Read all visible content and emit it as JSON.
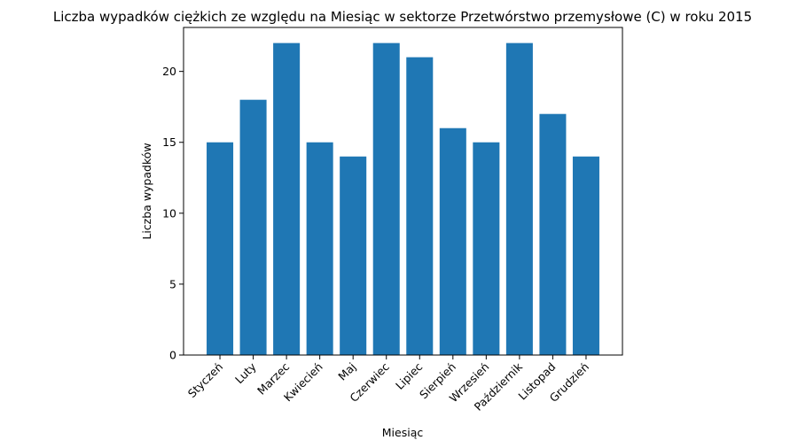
{
  "chart_data": {
    "type": "bar",
    "title": "Liczba wypadków ciężkich ze względu na Miesiąc w sektorze Przetwórstwo przemysłowe (C)   w roku 2015",
    "xlabel": "Miesiąc",
    "ylabel": "Liczba wypadków",
    "categories": [
      "Styczeń",
      "Luty",
      "Marzec",
      "Kwiecień",
      "Maj",
      "Czerwiec",
      "Lipiec",
      "Sierpień",
      "Wrzesień",
      "Październik",
      "Listopad",
      "Grudzień"
    ],
    "values": [
      15,
      18,
      22,
      15,
      14,
      22,
      21,
      16,
      15,
      22,
      17,
      14
    ],
    "ylim": [
      0,
      23.1
    ],
    "yticks": [
      0,
      5,
      10,
      15,
      20
    ],
    "bar_color": "#1f77b4",
    "grid": false,
    "legend": "none"
  }
}
